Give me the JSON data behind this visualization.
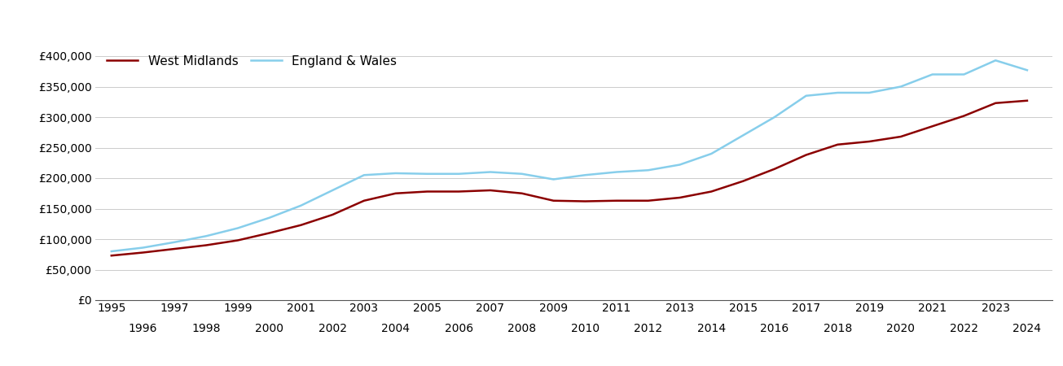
{
  "years": [
    1995,
    1996,
    1997,
    1998,
    1999,
    2000,
    2001,
    2002,
    2003,
    2004,
    2005,
    2006,
    2007,
    2008,
    2009,
    2010,
    2011,
    2012,
    2013,
    2014,
    2015,
    2016,
    2017,
    2018,
    2019,
    2020,
    2021,
    2022,
    2023,
    2024
  ],
  "west_midlands": [
    73000,
    78000,
    84000,
    90000,
    98000,
    110000,
    123000,
    140000,
    163000,
    175000,
    178000,
    178000,
    180000,
    175000,
    163000,
    162000,
    163000,
    163000,
    168000,
    178000,
    195000,
    215000,
    238000,
    255000,
    260000,
    268000,
    285000,
    302000,
    323000,
    327000
  ],
  "england_wales": [
    80000,
    86000,
    95000,
    105000,
    118000,
    135000,
    155000,
    180000,
    205000,
    208000,
    207000,
    207000,
    210000,
    207000,
    198000,
    205000,
    210000,
    213000,
    222000,
    240000,
    270000,
    300000,
    335000,
    340000,
    340000,
    350000,
    370000,
    370000,
    393000,
    377000
  ],
  "west_midlands_color": "#8B0000",
  "england_wales_color": "#87CEEB",
  "west_midlands_label": "West Midlands",
  "england_wales_label": "England & Wales",
  "ylim": [
    0,
    420000
  ],
  "yticks": [
    0,
    50000,
    100000,
    150000,
    200000,
    250000,
    300000,
    350000,
    400000
  ],
  "ytick_labels": [
    "£0",
    "£50,000",
    "£100,000",
    "£150,000",
    "£200,000",
    "£250,000",
    "£300,000",
    "£350,000",
    "£400,000"
  ],
  "xticks_odd": [
    1995,
    1997,
    1999,
    2001,
    2003,
    2005,
    2007,
    2009,
    2011,
    2013,
    2015,
    2017,
    2019,
    2021,
    2023
  ],
  "xticks_even": [
    1996,
    1998,
    2000,
    2002,
    2004,
    2006,
    2008,
    2010,
    2012,
    2014,
    2016,
    2018,
    2020,
    2022,
    2024
  ],
  "background_color": "#ffffff",
  "grid_color": "#cccccc",
  "line_width": 1.8,
  "legend_fontsize": 11,
  "tick_fontsize": 10,
  "xlim_left": 1994.5,
  "xlim_right": 2024.8
}
